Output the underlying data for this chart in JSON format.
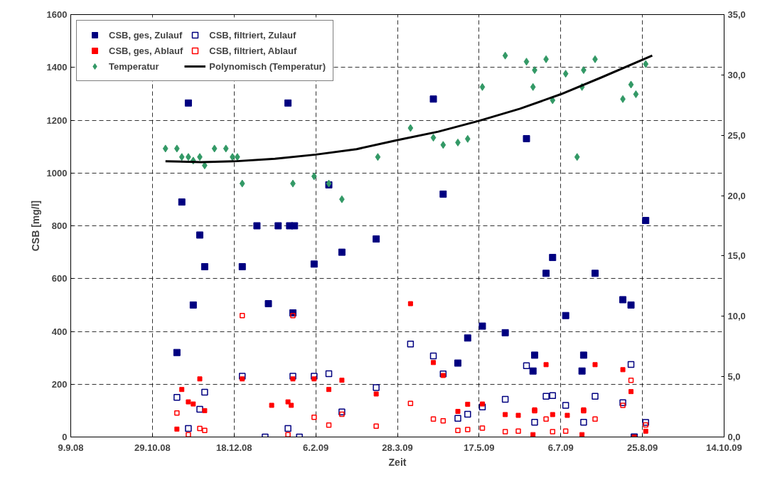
{
  "chart_data": {
    "type": "scatter",
    "xlabel": "Zeit",
    "ylabel": "CSB [mg/l]",
    "xlim": [
      "2008-09-09",
      "2009-10-14"
    ],
    "xticks": [
      {
        "value": "2008-09-09",
        "label": "9.9.08"
      },
      {
        "value": "2008-10-29",
        "label": "29.10.08"
      },
      {
        "value": "2008-12-18",
        "label": "18.12.08"
      },
      {
        "value": "2009-02-06",
        "label": "6.2.09"
      },
      {
        "value": "2009-03-28",
        "label": "28.3.09"
      },
      {
        "value": "2009-05-17",
        "label": "17.5.09"
      },
      {
        "value": "2009-07-06",
        "label": "6.7.09"
      },
      {
        "value": "2009-08-25",
        "label": "25.8.09"
      },
      {
        "value": "2009-10-14",
        "label": "14.10.09"
      }
    ],
    "ylim": [
      0,
      1600
    ],
    "yticks": [
      0,
      200,
      400,
      600,
      800,
      1000,
      1200,
      1400,
      1600
    ],
    "y2lim": [
      0,
      35
    ],
    "y2ticks": [
      {
        "value": 0,
        "label": "0,0"
      },
      {
        "value": 5,
        "label": "5,0"
      },
      {
        "value": 10,
        "label": "10,0"
      },
      {
        "value": 15,
        "label": "15,0"
      },
      {
        "value": 20,
        "label": "20,0"
      },
      {
        "value": 25,
        "label": "25,0"
      },
      {
        "value": 30,
        "label": "30,0"
      },
      {
        "value": 35,
        "label": "35,0"
      }
    ],
    "grid": true,
    "legend": "top left",
    "series": [
      {
        "name": "CSB, ges, Zulauf",
        "marker": "square",
        "color": "#000080",
        "x": [
          "2008-11-13",
          "2008-11-16",
          "2008-11-20",
          "2008-11-23",
          "2008-11-27",
          "2008-11-30",
          "2008-12-23",
          "2009-01-01",
          "2009-01-08",
          "2009-01-14",
          "2009-01-20",
          "2009-01-21",
          "2009-01-23",
          "2009-01-24",
          "2009-02-05",
          "2009-02-14",
          "2009-02-22",
          "2009-03-15",
          "2009-04-19",
          "2009-04-25",
          "2009-05-04",
          "2009-05-10",
          "2009-05-19",
          "2009-06-02",
          "2009-06-15",
          "2009-06-19",
          "2009-06-20",
          "2009-06-27",
          "2009-07-01",
          "2009-07-09",
          "2009-07-19",
          "2009-07-20",
          "2009-07-27",
          "2009-08-13",
          "2009-08-18",
          "2009-08-20",
          "2009-08-27"
        ],
        "values": [
          320,
          890,
          1265,
          500,
          765,
          645,
          645,
          800,
          505,
          800,
          1265,
          800,
          470,
          800,
          655,
          955,
          700,
          750,
          1280,
          920,
          280,
          375,
          420,
          395,
          1130,
          250,
          310,
          620,
          680,
          460,
          250,
          310,
          620,
          520,
          500,
          0,
          820
        ]
      },
      {
        "name": "CSB, filtriert, Zulauf",
        "marker": "square",
        "color": "#000080",
        "x": [
          "2008-11-13",
          "2008-11-20",
          "2008-11-27",
          "2008-11-30",
          "2008-12-23",
          "2009-01-06",
          "2009-01-20",
          "2009-01-23",
          "2009-01-27",
          "2009-02-05",
          "2009-02-14",
          "2009-02-22",
          "2009-03-15",
          "2009-04-05",
          "2009-04-19",
          "2009-04-25",
          "2009-05-04",
          "2009-05-10",
          "2009-05-19",
          "2009-06-02",
          "2009-06-15",
          "2009-06-20",
          "2009-06-27",
          "2009-07-01",
          "2009-07-09",
          "2009-07-20",
          "2009-07-27",
          "2009-08-13",
          "2009-08-18",
          "2009-08-27"
        ],
        "values": [
          150,
          32,
          105,
          170,
          230,
          0,
          32,
          230,
          0,
          230,
          240,
          95,
          187,
          352,
          307,
          239,
          71,
          86,
          114,
          143,
          270,
          56,
          154,
          157,
          120,
          56,
          154,
          130,
          275,
          55
        ]
      },
      {
        "name": "CSB, ges, Ablauf",
        "marker": "square",
        "color": "#ff0000",
        "x": [
          "2008-11-13",
          "2008-11-16",
          "2008-11-20",
          "2008-11-23",
          "2008-11-27",
          "2008-11-30",
          "2008-12-23",
          "2009-01-10",
          "2009-01-20",
          "2009-01-22",
          "2009-01-23",
          "2009-02-05",
          "2009-02-14",
          "2009-02-22",
          "2009-03-15",
          "2009-04-05",
          "2009-04-19",
          "2009-04-25",
          "2009-05-04",
          "2009-05-10",
          "2009-05-19",
          "2009-06-02",
          "2009-06-10",
          "2009-06-19",
          "2009-06-20",
          "2009-06-27",
          "2009-07-01",
          "2009-07-10",
          "2009-07-19",
          "2009-07-20",
          "2009-07-27",
          "2009-08-13",
          "2009-08-18",
          "2009-08-20",
          "2009-08-27"
        ],
        "values": [
          30,
          180,
          133,
          125,
          220,
          100,
          220,
          120,
          133,
          120,
          220,
          220,
          180,
          215,
          163,
          505,
          282,
          233,
          97,
          124,
          125,
          85,
          82,
          9,
          103,
          274,
          85,
          82,
          9,
          103,
          274,
          255,
          172,
          0,
          22
        ]
      },
      {
        "name": "CSB, filtriert, Ablauf",
        "marker": "square",
        "color": "#ff0000",
        "x": [
          "2008-11-13",
          "2008-11-20",
          "2008-11-27",
          "2008-11-30",
          "2008-12-23",
          "2009-01-20",
          "2009-01-23",
          "2009-02-05",
          "2009-02-14",
          "2009-02-22",
          "2009-03-15",
          "2009-04-05",
          "2009-04-19",
          "2009-04-25",
          "2009-05-04",
          "2009-05-10",
          "2009-05-19",
          "2009-06-02",
          "2009-06-10",
          "2009-06-20",
          "2009-06-27",
          "2009-07-01",
          "2009-07-09",
          "2009-07-20",
          "2009-07-27",
          "2009-08-13",
          "2009-08-18",
          "2009-08-27"
        ],
        "values": [
          91,
          9,
          32,
          25,
          460,
          9,
          460,
          75,
          45,
          86,
          41,
          127,
          68,
          61,
          25,
          28,
          34,
          20,
          22,
          100,
          68,
          20,
          22,
          100,
          68,
          120,
          215,
          46
        ]
      },
      {
        "name": "Temperatur",
        "marker": "diamond",
        "color": "#339966",
        "axis": "y2",
        "x": [
          "2008-11-06",
          "2008-11-13",
          "2008-11-16",
          "2008-11-20",
          "2008-11-23",
          "2008-11-27",
          "2008-11-30",
          "2008-12-06",
          "2008-12-13",
          "2008-12-17",
          "2008-12-20",
          "2008-12-23",
          "2009-01-23",
          "2009-02-05",
          "2009-02-14",
          "2009-02-22",
          "2009-03-16",
          "2009-04-05",
          "2009-04-19",
          "2009-04-25",
          "2009-05-04",
          "2009-05-10",
          "2009-05-19",
          "2009-06-02",
          "2009-06-15",
          "2009-06-19",
          "2009-06-20",
          "2009-06-27",
          "2009-07-01",
          "2009-07-09",
          "2009-07-16",
          "2009-07-19",
          "2009-07-20",
          "2009-07-27",
          "2009-08-13",
          "2009-08-18",
          "2009-08-21",
          "2009-08-27"
        ],
        "values": [
          23.9,
          23.9,
          23.2,
          23.2,
          22.9,
          23.2,
          22.5,
          23.9,
          23.9,
          23.2,
          23.2,
          21.0,
          21.0,
          21.6,
          21.0,
          19.7,
          23.2,
          25.6,
          24.8,
          24.2,
          24.4,
          24.7,
          29.0,
          31.6,
          31.1,
          29.0,
          30.4,
          31.3,
          27.9,
          30.1,
          23.2,
          29.0,
          30.4,
          31.3,
          28.0,
          29.2,
          28.4,
          30.9
        ]
      },
      {
        "name": "Polynomisch (Temperatur)",
        "type": "line",
        "line_style": "solid",
        "color": "#000000",
        "axis": "y2",
        "x": [
          "2008-11-06",
          "2008-11-28",
          "2008-12-18",
          "2009-01-12",
          "2009-02-06",
          "2009-03-03",
          "2009-03-28",
          "2009-04-22",
          "2009-05-17",
          "2009-06-11",
          "2009-07-06",
          "2009-07-31",
          "2009-08-31"
        ],
        "values": [
          22.85,
          22.78,
          22.84,
          23.05,
          23.4,
          23.85,
          24.6,
          25.3,
          26.2,
          27.2,
          28.4,
          29.8,
          31.6
        ]
      }
    ]
  }
}
